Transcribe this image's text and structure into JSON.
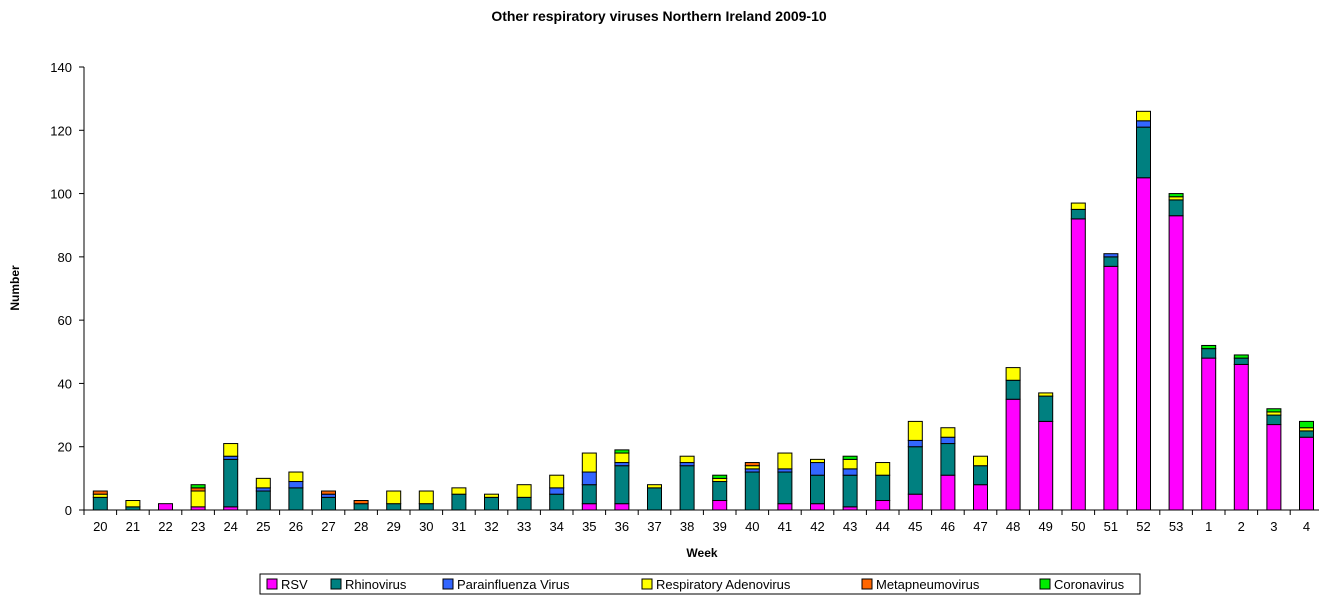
{
  "chart_data": {
    "type": "bar",
    "stacked": true,
    "title": "Other respiratory viruses Northern Ireland 2009-10",
    "xlabel": "Week",
    "ylabel": "Number",
    "ylim": [
      0,
      140
    ],
    "yticks": [
      0,
      20,
      40,
      60,
      80,
      100,
      120,
      140
    ],
    "grid": false,
    "legend_position": "bottom",
    "categories": [
      "20",
      "21",
      "22",
      "23",
      "24",
      "25",
      "26",
      "27",
      "28",
      "29",
      "30",
      "31",
      "32",
      "33",
      "34",
      "35",
      "36",
      "37",
      "38",
      "39",
      "40",
      "41",
      "42",
      "43",
      "44",
      "45",
      "46",
      "47",
      "48",
      "49",
      "50",
      "51",
      "52",
      "53",
      "1",
      "2",
      "3",
      "4"
    ],
    "series": [
      {
        "name": "RSV",
        "color": "#FF00FF",
        "values": [
          0,
          0,
          2,
          1,
          1,
          0,
          0,
          0,
          0,
          0,
          0,
          0,
          0,
          0,
          0,
          2,
          2,
          0,
          0,
          3,
          0,
          2,
          2,
          1,
          3,
          5,
          11,
          8,
          35,
          28,
          92,
          77,
          105,
          93,
          48,
          46,
          27,
          23
        ]
      },
      {
        "name": "Rhinovirus",
        "color": "#008080",
        "values": [
          4,
          1,
          0,
          0,
          15,
          6,
          7,
          4,
          2,
          2,
          2,
          5,
          4,
          4,
          5,
          6,
          12,
          7,
          14,
          6,
          12,
          10,
          9,
          10,
          8,
          15,
          10,
          6,
          6,
          8,
          3,
          3,
          16,
          5,
          3,
          2,
          3,
          2
        ]
      },
      {
        "name": "Parainfluenza Virus",
        "color": "#3366FF",
        "values": [
          0,
          0,
          0,
          0,
          1,
          1,
          2,
          1,
          0,
          0,
          0,
          0,
          0,
          0,
          2,
          4,
          1,
          0,
          1,
          0,
          1,
          1,
          4,
          2,
          0,
          2,
          2,
          0,
          0,
          0,
          0,
          1,
          2,
          0,
          0,
          0,
          0,
          0
        ]
      },
      {
        "name": "Respiratory Adenovirus",
        "color": "#FFFF00",
        "values": [
          1,
          2,
          0,
          5,
          4,
          3,
          3,
          0,
          0,
          4,
          4,
          2,
          1,
          4,
          4,
          6,
          3,
          1,
          2,
          1,
          1,
          5,
          1,
          3,
          4,
          6,
          3,
          3,
          4,
          1,
          2,
          0,
          3,
          1,
          0,
          0,
          1,
          1
        ]
      },
      {
        "name": "Metapneumovirus",
        "color": "#FF6600",
        "values": [
          1,
          0,
          0,
          1,
          0,
          0,
          0,
          1,
          1,
          0,
          0,
          0,
          0,
          0,
          0,
          0,
          0,
          0,
          0,
          0,
          1,
          0,
          0,
          0,
          0,
          0,
          0,
          0,
          0,
          0,
          0,
          0,
          0,
          0,
          0,
          0,
          0,
          0
        ]
      },
      {
        "name": "Coronavirus",
        "color": "#00EE00",
        "values": [
          0,
          0,
          0,
          1,
          0,
          0,
          0,
          0,
          0,
          0,
          0,
          0,
          0,
          0,
          0,
          0,
          1,
          0,
          0,
          1,
          0,
          0,
          0,
          1,
          0,
          0,
          0,
          0,
          0,
          0,
          0,
          0,
          0,
          1,
          1,
          1,
          1,
          2
        ]
      }
    ]
  }
}
